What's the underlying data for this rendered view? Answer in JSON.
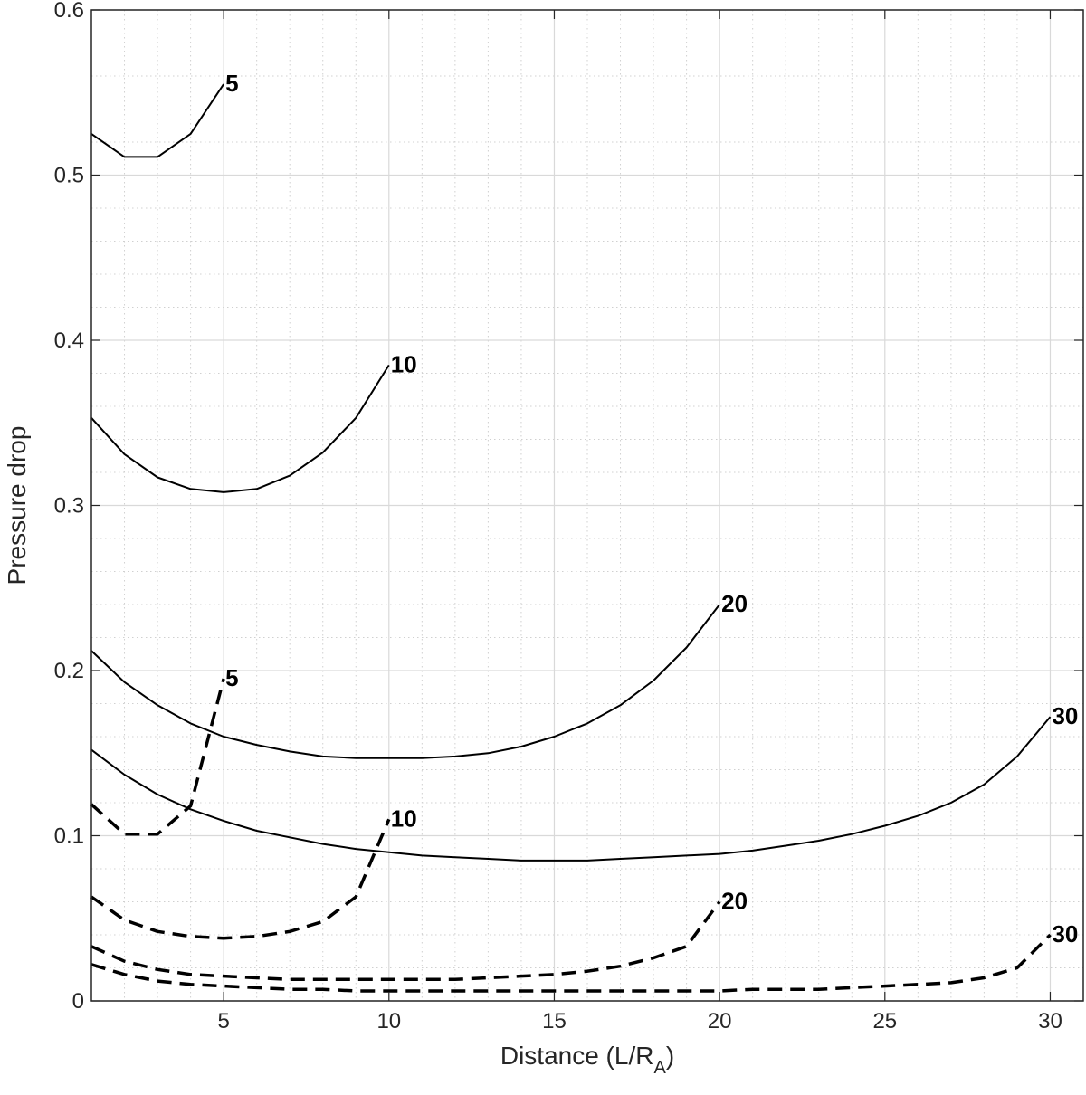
{
  "chart_data": {
    "type": "line",
    "title": "",
    "xlabel": {
      "main": "Distance (L/R",
      "subscript": "A",
      "close": ")"
    },
    "ylabel": "Pressure drop",
    "xlim": [
      1,
      31
    ],
    "ylim": [
      0,
      0.6
    ],
    "xticks": [
      5,
      10,
      15,
      20,
      25,
      30
    ],
    "xtick_labels": [
      "5",
      "10",
      "15",
      "20",
      "25",
      "30"
    ],
    "yticks": [
      0,
      0.1,
      0.2,
      0.3,
      0.4,
      0.5,
      0.6
    ],
    "ytick_labels": [
      "0",
      "0.1",
      "0.2",
      "0.3",
      "0.4",
      "0.5",
      "0.6"
    ],
    "grid": true,
    "minor_grid": true,
    "series": [
      {
        "style": "solid",
        "label": "5",
        "x": [
          1,
          2,
          3,
          4,
          5
        ],
        "y": [
          0.525,
          0.511,
          0.511,
          0.525,
          0.555
        ]
      },
      {
        "style": "solid",
        "label": "10",
        "x": [
          1,
          2,
          3,
          4,
          5,
          6,
          7,
          8,
          9,
          10
        ],
        "y": [
          0.353,
          0.331,
          0.317,
          0.31,
          0.308,
          0.31,
          0.318,
          0.332,
          0.353,
          0.385
        ]
      },
      {
        "style": "solid",
        "label": "20",
        "x": [
          1,
          2,
          3,
          4,
          5,
          6,
          7,
          8,
          9,
          10,
          11,
          12,
          13,
          14,
          15,
          16,
          17,
          18,
          19,
          20
        ],
        "y": [
          0.212,
          0.193,
          0.179,
          0.168,
          0.16,
          0.155,
          0.151,
          0.148,
          0.147,
          0.147,
          0.147,
          0.148,
          0.15,
          0.154,
          0.16,
          0.168,
          0.179,
          0.194,
          0.214,
          0.24
        ]
      },
      {
        "style": "solid",
        "label": "30",
        "x": [
          1,
          2,
          3,
          4,
          5,
          6,
          7,
          8,
          9,
          10,
          11,
          12,
          13,
          14,
          15,
          16,
          17,
          18,
          19,
          20,
          21,
          22,
          23,
          24,
          25,
          26,
          27,
          28,
          29,
          30
        ],
        "y": [
          0.152,
          0.137,
          0.125,
          0.116,
          0.109,
          0.103,
          0.099,
          0.095,
          0.092,
          0.09,
          0.088,
          0.087,
          0.086,
          0.085,
          0.085,
          0.085,
          0.086,
          0.087,
          0.088,
          0.089,
          0.091,
          0.094,
          0.097,
          0.101,
          0.106,
          0.112,
          0.12,
          0.131,
          0.148,
          0.172
        ]
      },
      {
        "style": "dashed",
        "label": "5",
        "x": [
          1,
          2,
          3,
          4,
          5
        ],
        "y": [
          0.119,
          0.101,
          0.101,
          0.118,
          0.195
        ]
      },
      {
        "style": "dashed",
        "label": "10",
        "x": [
          1,
          2,
          3,
          4,
          5,
          6,
          7,
          8,
          9,
          10
        ],
        "y": [
          0.063,
          0.049,
          0.042,
          0.039,
          0.038,
          0.039,
          0.042,
          0.048,
          0.063,
          0.11
        ]
      },
      {
        "style": "dashed",
        "label": "20",
        "x": [
          1,
          2,
          3,
          4,
          5,
          6,
          7,
          8,
          9,
          10,
          11,
          12,
          13,
          14,
          15,
          16,
          17,
          18,
          19,
          20
        ],
        "y": [
          0.033,
          0.024,
          0.019,
          0.016,
          0.015,
          0.014,
          0.013,
          0.013,
          0.013,
          0.013,
          0.013,
          0.013,
          0.014,
          0.015,
          0.016,
          0.018,
          0.021,
          0.026,
          0.033,
          0.06
        ]
      },
      {
        "style": "dashed",
        "label": "30",
        "x": [
          1,
          2,
          3,
          4,
          5,
          6,
          7,
          8,
          9,
          10,
          11,
          12,
          13,
          14,
          15,
          16,
          17,
          18,
          19,
          20,
          21,
          22,
          23,
          24,
          25,
          26,
          27,
          28,
          29,
          30
        ],
        "y": [
          0.022,
          0.016,
          0.012,
          0.01,
          0.009,
          0.008,
          0.007,
          0.007,
          0.006,
          0.006,
          0.006,
          0.006,
          0.006,
          0.006,
          0.006,
          0.006,
          0.006,
          0.006,
          0.006,
          0.006,
          0.007,
          0.007,
          0.007,
          0.008,
          0.009,
          0.01,
          0.011,
          0.014,
          0.02,
          0.04
        ]
      }
    ]
  }
}
